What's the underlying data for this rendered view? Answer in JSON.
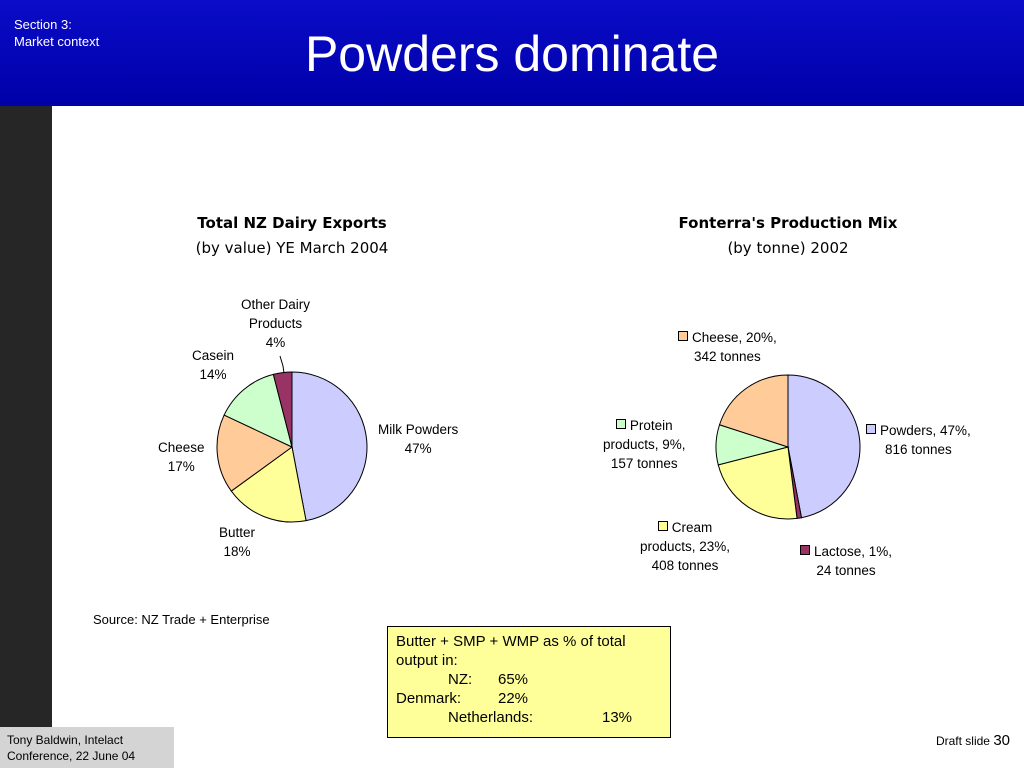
{
  "header": {
    "section_line1": "Section 3:",
    "section_line2": "Market context",
    "title": "Powders dominate"
  },
  "chart_data": [
    {
      "type": "pie",
      "title": "Total NZ Dairy Exports",
      "subtitle": "(by value) YE March 2004",
      "unit": "%",
      "slices": [
        {
          "name": "Milk Powders",
          "label": [
            "Milk Powders"
          ],
          "value": 47,
          "value_text": "47%",
          "color": "#ccccff"
        },
        {
          "name": "Butter",
          "label": [
            "Butter"
          ],
          "value": 18,
          "value_text": "18%",
          "color": "#ffff99"
        },
        {
          "name": "Cheese",
          "label": [
            "Cheese"
          ],
          "value": 17,
          "value_text": "17%",
          "color": "#ffcc99"
        },
        {
          "name": "Casein",
          "label": [
            "Casein"
          ],
          "value": 14,
          "value_text": "14%",
          "color": "#ccffcc"
        },
        {
          "name": "Other Dairy Products",
          "label": [
            "Other Dairy",
            "Products"
          ],
          "value": 4,
          "value_text": "4%",
          "color": "#993366"
        }
      ]
    },
    {
      "type": "pie",
      "title": "Fonterra's Production Mix",
      "subtitle": "(by tonne) 2002",
      "slices": [
        {
          "name": "Powders",
          "label": [
            "Powders, 47%,",
            "816 tonnes"
          ],
          "value": 47,
          "tonnes": 816,
          "color": "#ccccff"
        },
        {
          "name": "Lactose",
          "label": [
            "Lactose, 1%,",
            "24 tonnes"
          ],
          "value": 1,
          "tonnes": 24,
          "color": "#993366"
        },
        {
          "name": "Cream products",
          "label": [
            "Cream",
            "products, 23%,",
            "408 tonnes"
          ],
          "value": 23,
          "tonnes": 408,
          "color": "#ffff99"
        },
        {
          "name": "Protein products",
          "label": [
            "Protein",
            "products, 9%,",
            "157 tonnes"
          ],
          "value": 9,
          "tonnes": 157,
          "color": "#ccffcc"
        },
        {
          "name": "Cheese",
          "label": [
            "Cheese, 20%,",
            "342 tonnes"
          ],
          "value": 20,
          "tonnes": 342,
          "color": "#ffcc99"
        }
      ]
    }
  ],
  "source": "Source: NZ Trade + Enterprise",
  "note": {
    "heading_line1": "Butter + SMP + WMP as % of total",
    "heading_line2": "output in:",
    "rows": [
      {
        "country": "NZ:",
        "value": "65%"
      },
      {
        "country": "Denmark:",
        "value": "22%"
      },
      {
        "country": "Netherlands:",
        "value": "13%"
      }
    ]
  },
  "footer": {
    "line1": "Tony Baldwin, Intelact",
    "line2": "Conference, 22 June 04",
    "slide_label": "Draft slide",
    "slide_number": "30"
  }
}
